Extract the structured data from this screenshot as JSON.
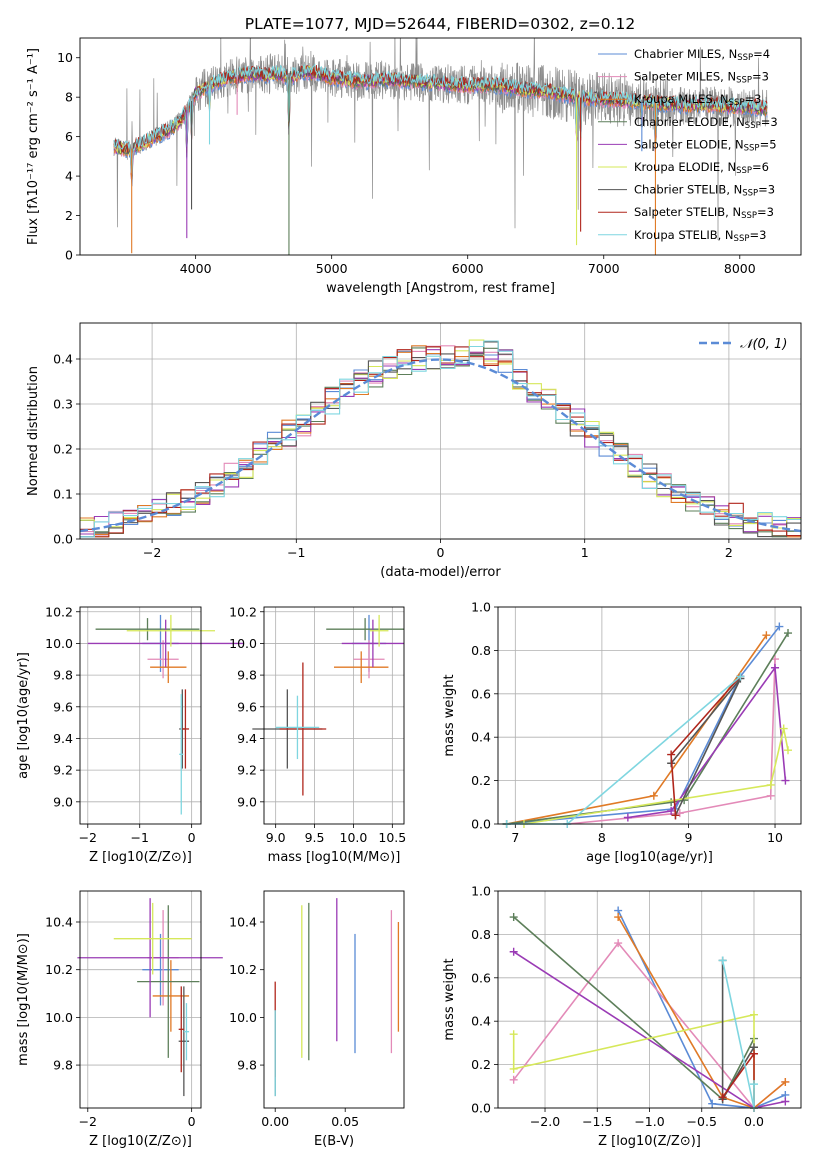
{
  "figure": {
    "title": "PLATE=1077, MJD=52644, FIBERID=0302, z=0.12"
  },
  "model_colors": [
    "#5b8bd6",
    "#e38ab8",
    "#e07a26",
    "#5d7f5a",
    "#9a3bb5",
    "#d6e85a",
    "#555555",
    "#b0261c",
    "#7fd6e0"
  ],
  "observed_color": "#8c8c8c",
  "chart_data": [
    {
      "type": "line",
      "title": "PLATE=1077, MJD=52644, FIBERID=0302, z=0.12",
      "xlabel": "wavelength [Angstrom, rest frame]",
      "ylabel": "Flux [fλ10⁻¹⁷ erg cm⁻² s⁻¹ A⁻¹]",
      "xlim": [
        3150,
        8450
      ],
      "ylim": [
        0,
        11
      ],
      "xticks": [
        4000,
        5000,
        6000,
        7000,
        8000
      ],
      "yticks": [
        0,
        2,
        4,
        6,
        8,
        10
      ],
      "grid": false,
      "legend_position": "right",
      "continuum": {
        "x": [
          3400,
          3500,
          3600,
          3700,
          3800,
          3900,
          4000,
          4100,
          4200,
          4300,
          4400,
          4500,
          4600,
          4700,
          4800,
          4900,
          5000,
          5200,
          5400,
          5600,
          5800,
          6000,
          6200,
          6400,
          6600,
          6800,
          7000,
          7200,
          7400,
          7600,
          7800,
          8000,
          8100,
          8200
        ],
        "y": [
          5.5,
          5.3,
          5.6,
          6.0,
          6.3,
          6.9,
          8.2,
          8.6,
          8.9,
          9.1,
          9.2,
          9.1,
          9.2,
          9.0,
          9.3,
          9.2,
          9.0,
          8.8,
          8.9,
          8.8,
          8.7,
          8.6,
          8.6,
          8.4,
          8.3,
          8.0,
          7.9,
          7.8,
          7.7,
          7.6,
          7.6,
          7.5,
          7.5,
          7.4
        ]
      },
      "absorption_features": [
        {
          "x": 3530,
          "depth": 5.3
        },
        {
          "x": 3935,
          "depth": 6.5
        },
        {
          "x": 3970,
          "depth": 5.5
        },
        {
          "x": 4102,
          "depth": 3.0
        },
        {
          "x": 4305,
          "depth": 2.0
        },
        {
          "x": 4686,
          "depth": 9.2
        },
        {
          "x": 6800,
          "depth": 7.5
        },
        {
          "x": 6830,
          "depth": 6.8
        },
        {
          "x": 7280,
          "depth": 2.5
        },
        {
          "x": 7380,
          "depth": 7.8
        }
      ],
      "legend": [
        "Chabrier MILES, N_SSP=4",
        "Salpeter MILES, N_SSP=3",
        "Kroupa MILES, N_SSP=3",
        "Chabrier ELODIE, N_SSP=3",
        "Salpeter ELODIE, N_SSP=5",
        "Kroupa ELODIE, N_SSP=6",
        "Chabrier STELIB, N_SSP=3",
        "Salpeter STELIB, N_SSP=3",
        "Kroupa STELIB, N_SSP=3"
      ]
    },
    {
      "type": "histogram",
      "xlabel": "(data-model)/error",
      "ylabel": "Normed distribution",
      "xlim": [
        -2.5,
        2.5
      ],
      "ylim": [
        0,
        0.48
      ],
      "xticks": [
        -2,
        -1,
        0,
        1,
        2
      ],
      "yticks": [
        0.0,
        0.1,
        0.2,
        0.3,
        0.4
      ],
      "grid": true,
      "legend": [
        "𝒩(0, 1)"
      ],
      "legend_position": "top-right",
      "bin_width": 0.1,
      "bins_start": -2.5,
      "reference_curve": "normal(0,1)"
    },
    {
      "type": "scatter",
      "xlabel": "Z [log10(Z/Z⊙)]",
      "ylabel": "age  [log10(age/yr)]",
      "xlim": [
        -2.15,
        0.18
      ],
      "ylim": [
        8.86,
        10.23
      ],
      "xticks": [
        -2,
        -1,
        0
      ],
      "xticklabels": [
        "−2",
        "−1",
        "0"
      ],
      "yticks": [
        9.0,
        9.2,
        9.4,
        9.6,
        9.8,
        10.0,
        10.2
      ],
      "grid": true,
      "points": [
        {
          "x": -0.6,
          "y": 10.0,
          "xerr": 0.35,
          "yerr": 0.18
        },
        {
          "x": -0.55,
          "y": 9.9,
          "xerr": 0.3,
          "yerr": 0.12
        },
        {
          "x": -0.45,
          "y": 9.85,
          "xerr": 0.35,
          "yerr": 0.1
        },
        {
          "x": -0.85,
          "y": 10.09,
          "xerr": 1.0,
          "yerr": 0.07
        },
        {
          "x": -0.5,
          "y": 10.0,
          "xerr": 1.5,
          "yerr": 0.15
        },
        {
          "x": -0.4,
          "y": 10.08,
          "xerr": 0.85,
          "yerr": 0.1
        },
        {
          "x": -0.18,
          "y": 9.46,
          "xerr": 0.06,
          "yerr": 0.25
        },
        {
          "x": -0.12,
          "y": 9.46,
          "xerr": 0.07,
          "yerr": 0.25
        },
        {
          "x": -0.2,
          "y": 9.3,
          "xerr": 0.04,
          "yerr": 0.38
        }
      ]
    },
    {
      "type": "scatter",
      "xlabel": "mass [log10(M/M⊙)]",
      "ylabel": "",
      "xlim": [
        8.85,
        10.65
      ],
      "ylim": [
        8.86,
        10.23
      ],
      "xticks": [
        9.0,
        9.5,
        10.0,
        10.5
      ],
      "yticks": [
        9.0,
        9.2,
        9.4,
        9.6,
        9.8,
        10.0,
        10.2
      ],
      "grid": true,
      "points": [
        {
          "x": 10.2,
          "y": 10.0,
          "xerr": 0.22,
          "yerr": 0.18
        },
        {
          "x": 10.2,
          "y": 9.9,
          "xerr": 0.2,
          "yerr": 0.12
        },
        {
          "x": 10.1,
          "y": 9.85,
          "xerr": 0.35,
          "yerr": 0.1
        },
        {
          "x": 10.15,
          "y": 10.09,
          "xerr": 0.5,
          "yerr": 0.07
        },
        {
          "x": 10.25,
          "y": 10.0,
          "xerr": 0.4,
          "yerr": 0.15
        },
        {
          "x": 10.33,
          "y": 10.08,
          "xerr": 0.12,
          "yerr": 0.1
        },
        {
          "x": 9.15,
          "y": 9.46,
          "xerr": 0.45,
          "yerr": 0.25
        },
        {
          "x": 9.35,
          "y": 9.46,
          "xerr": 0.3,
          "yerr": 0.42
        },
        {
          "x": 9.28,
          "y": 9.47,
          "xerr": 0.28,
          "yerr": 0.2
        }
      ]
    },
    {
      "type": "line",
      "xlabel": "age  [log10(age/yr)]",
      "ylabel": "mass weight",
      "xlim": [
        6.8,
        10.3
      ],
      "ylim": [
        0,
        1.0
      ],
      "xticks": [
        7,
        8,
        9,
        10
      ],
      "yticks": [
        0.0,
        0.2,
        0.4,
        0.6,
        0.8,
        1.0
      ],
      "grid": true,
      "series": [
        {
          "x": [
            6.9,
            8.85,
            9.6,
            10.05
          ],
          "y": [
            0.0,
            0.07,
            0.68,
            0.91
          ]
        },
        {
          "x": [
            7.6,
            8.9,
            9.95,
            10.0
          ],
          "y": [
            0.0,
            0.05,
            0.13,
            0.76
          ]
        },
        {
          "x": [
            6.9,
            8.6,
            9.9
          ],
          "y": [
            0.0,
            0.13,
            0.87
          ]
        },
        {
          "x": [
            6.9,
            8.8,
            8.95,
            10.15
          ],
          "y": [
            0.0,
            0.1,
            0.11,
            0.88
          ]
        },
        {
          "x": [
            8.3,
            8.8,
            10.0,
            10.12
          ],
          "y": [
            0.03,
            0.06,
            0.72,
            0.2
          ]
        },
        {
          "x": [
            7.1,
            9.95,
            10.1,
            10.15
          ],
          "y": [
            0.0,
            0.18,
            0.44,
            0.34
          ]
        },
        {
          "x": [
            8.8,
            9.6,
            8.85
          ],
          "y": [
            0.28,
            0.67,
            0.04
          ]
        },
        {
          "x": [
            8.85,
            8.8,
            9.6
          ],
          "y": [
            0.04,
            0.32,
            0.68
          ]
        },
        {
          "x": [
            6.9,
            7.6,
            9.6
          ],
          "y": [
            0.0,
            0.0,
            0.68
          ]
        }
      ]
    },
    {
      "type": "scatter",
      "xlabel": "Z [log10(Z/Z⊙)]",
      "ylabel": "mass [log10(M/M⊙)]",
      "xlim": [
        -2.15,
        0.18
      ],
      "ylim": [
        9.62,
        10.53
      ],
      "xticks": [
        -2,
        0
      ],
      "xticklabels": [
        "−2",
        "0"
      ],
      "yticks": [
        9.8,
        10.0,
        10.2,
        10.4
      ],
      "grid": true,
      "points": [
        {
          "x": -0.6,
          "y": 10.2,
          "xerr": 0.35,
          "yerr": 0.15
        },
        {
          "x": -0.55,
          "y": 10.25,
          "xerr": 0.3,
          "yerr": 0.2
        },
        {
          "x": -0.4,
          "y": 10.09,
          "xerr": 0.35,
          "yerr": 0.15
        },
        {
          "x": -0.45,
          "y": 10.15,
          "xerr": 0.6,
          "yerr": 0.32
        },
        {
          "x": -0.8,
          "y": 10.25,
          "xerr": 1.4,
          "yerr": 0.25
        },
        {
          "x": -0.75,
          "y": 10.33,
          "xerr": 0.75,
          "yerr": 0.15
        },
        {
          "x": -0.15,
          "y": 9.9,
          "xerr": 0.1,
          "yerr": 0.23
        },
        {
          "x": -0.2,
          "y": 9.95,
          "xerr": 0.05,
          "yerr": 0.18
        },
        {
          "x": -0.1,
          "y": 9.94,
          "xerr": 0.05,
          "yerr": 0.12
        }
      ]
    },
    {
      "type": "scatter",
      "xlabel": "E(B-V)",
      "ylabel": "",
      "xlim": [
        -0.008,
        0.092
      ],
      "ylim": [
        9.62,
        10.53
      ],
      "xticks": [
        0.0,
        0.05
      ],
      "xticklabels": [
        "0.00",
        "0.05"
      ],
      "yticks": [
        9.8,
        10.0,
        10.2,
        10.4
      ],
      "grid": false,
      "points": [
        {
          "x": 0.057,
          "y": 10.1,
          "yerr": 0.25
        },
        {
          "x": 0.083,
          "y": 10.15,
          "yerr": 0.3
        },
        {
          "x": 0.088,
          "y": 10.17,
          "yerr": 0.23
        },
        {
          "x": 0.024,
          "y": 10.15,
          "yerr": 0.33
        },
        {
          "x": 0.044,
          "y": 10.2,
          "yerr": 0.3
        },
        {
          "x": 0.019,
          "y": 10.15,
          "yerr": 0.32
        },
        {
          "x": 0.0,
          "y": 9.85,
          "yerr": 0.18
        },
        {
          "x": 0.0,
          "y": 9.95,
          "yerr": 0.2
        },
        {
          "x": 0.0,
          "y": 9.85,
          "yerr": 0.18
        }
      ]
    },
    {
      "type": "line",
      "xlabel": "Z [log10(Z/Z⊙)]",
      "ylabel": "mass weight",
      "xlim": [
        -2.45,
        0.45
      ],
      "ylim": [
        0,
        1.0
      ],
      "xticks": [
        -2.0,
        -1.5,
        -1.0,
        -0.5,
        0.0
      ],
      "xticklabels": [
        "−2.0",
        "−1.5",
        "−1.0",
        "−0.5",
        "0.0"
      ],
      "yticks": [
        0.0,
        0.2,
        0.4,
        0.6,
        0.8,
        1.0
      ],
      "grid": true,
      "series": [
        {
          "x": [
            -1.3,
            -0.4,
            0.0,
            0.3
          ],
          "y": [
            0.91,
            0.02,
            0.0,
            0.06
          ]
        },
        {
          "x": [
            -2.3,
            -1.3,
            0.0,
            0.3
          ],
          "y": [
            0.13,
            0.76,
            0.0,
            0.12
          ]
        },
        {
          "x": [
            -1.3,
            -0.3,
            0.0,
            0.3
          ],
          "y": [
            0.88,
            0.05,
            0.0,
            0.12
          ]
        },
        {
          "x": [
            -2.3,
            -0.3,
            0.0
          ],
          "y": [
            0.88,
            0.04,
            0.32
          ]
        },
        {
          "x": [
            -2.3,
            0.0,
            0.3
          ],
          "y": [
            0.72,
            0.0,
            0.03
          ]
        },
        {
          "x": [
            -2.3,
            -2.3,
            0.0,
            0.0
          ],
          "y": [
            0.34,
            0.18,
            0.43,
            0.0
          ]
        },
        {
          "x": [
            -0.3,
            -0.3,
            0.0
          ],
          "y": [
            0.68,
            0.04,
            0.28
          ]
        },
        {
          "x": [
            -0.3,
            0.0,
            0.0
          ],
          "y": [
            0.05,
            0.25,
            0.0
          ]
        },
        {
          "x": [
            -0.3,
            0.0,
            0.0
          ],
          "y": [
            0.68,
            0.0,
            0.11
          ]
        }
      ]
    }
  ]
}
